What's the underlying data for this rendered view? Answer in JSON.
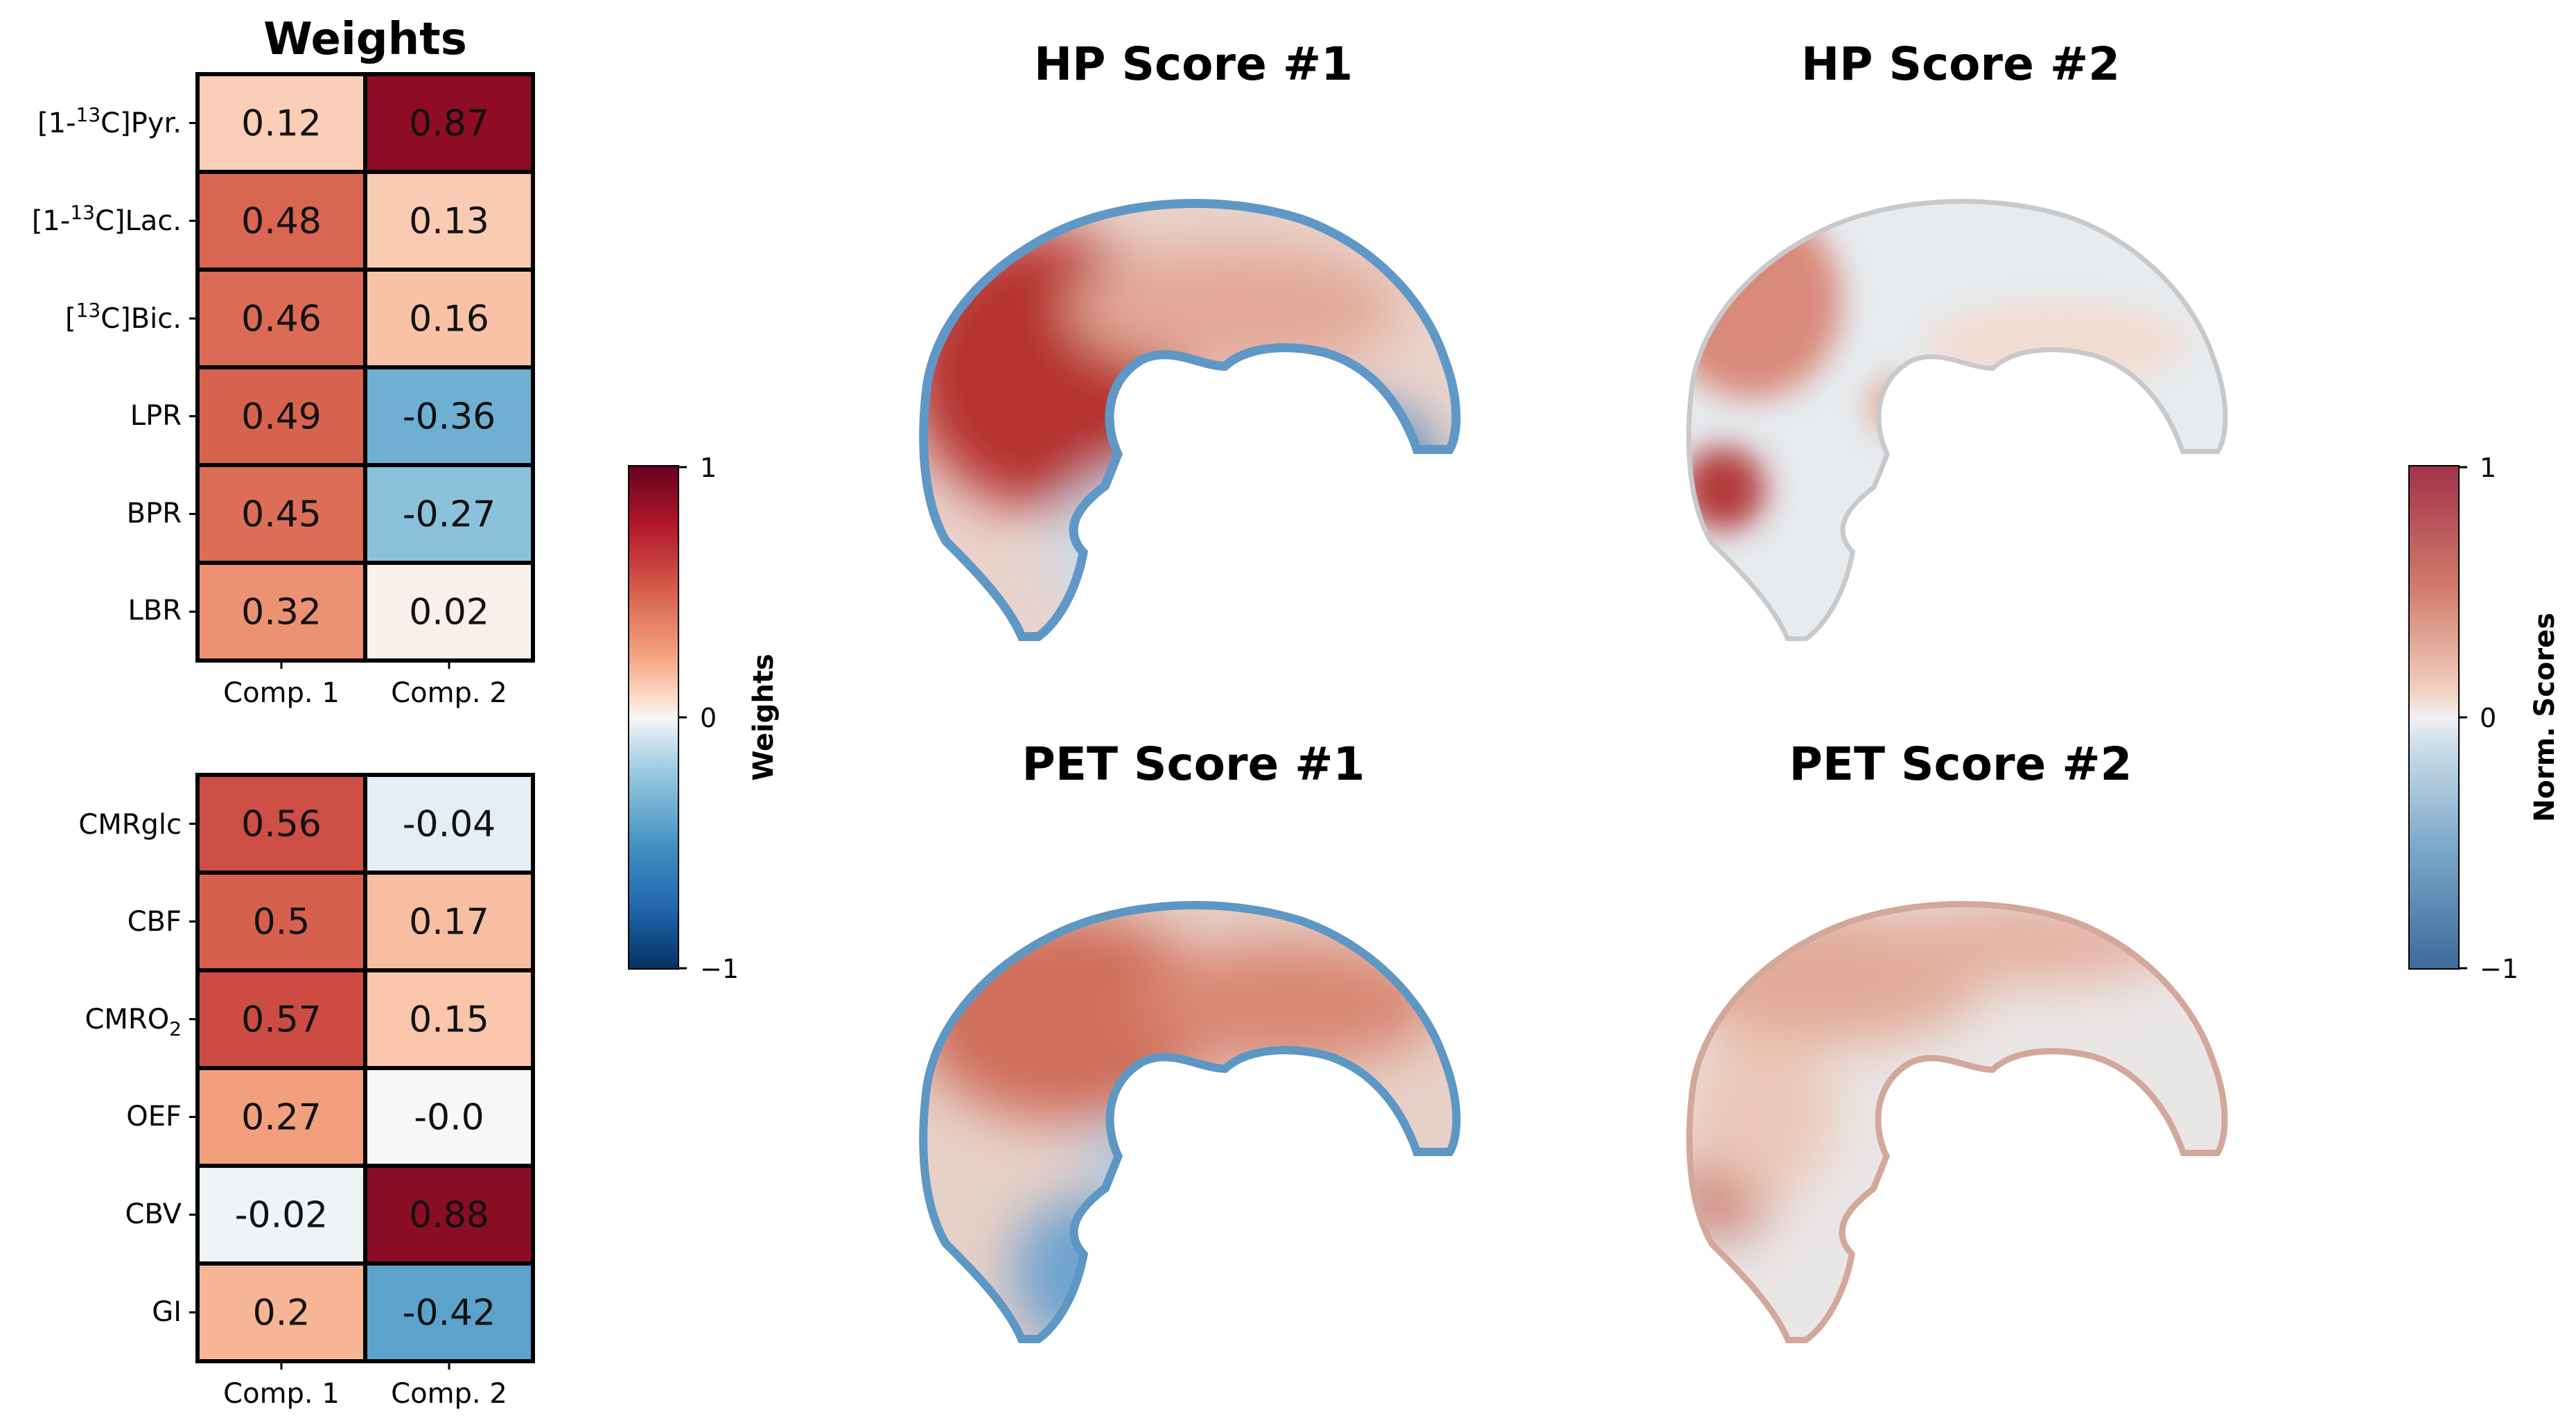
{
  "colors": {
    "strong_red": "#8e1023",
    "red": "#c84a3e",
    "light_red": "#f4b59a",
    "white": "#f7f7f7",
    "light_blue": "#a6cde2",
    "blue": "#3f86bd",
    "dark_blue": "#0b3e77",
    "brain_base": "#e6ebee"
  },
  "chart_data": [
    {
      "type": "heatmap",
      "title": "Weights",
      "rows": [
        "[1-13C]Pyr.",
        "[1-13C]Lac.",
        "[13C]Bic.",
        "LPR",
        "BPR",
        "LBR"
      ],
      "columns": [
        "Comp. 1",
        "Comp. 2"
      ],
      "values": [
        [
          0.12,
          0.87
        ],
        [
          0.48,
          0.13
        ],
        [
          0.46,
          0.16
        ],
        [
          0.49,
          -0.36
        ],
        [
          0.45,
          -0.27
        ],
        [
          0.32,
          0.02
        ]
      ],
      "value_labels": [
        [
          "0.12",
          "0.87"
        ],
        [
          "0.48",
          "0.13"
        ],
        [
          "0.46",
          "0.16"
        ],
        [
          "0.49",
          "-0.36"
        ],
        [
          "0.45",
          "-0.27"
        ],
        [
          "0.32",
          "0.02"
        ]
      ],
      "vmin": -1,
      "vmax": 1
    },
    {
      "type": "heatmap",
      "title": "",
      "rows": [
        "CMRglc",
        "CBF",
        "CMRO2",
        "OEF",
        "CBV",
        "GI"
      ],
      "columns": [
        "Comp. 1",
        "Comp. 2"
      ],
      "values": [
        [
          0.56,
          -0.04
        ],
        [
          0.5,
          0.17
        ],
        [
          0.57,
          0.15
        ],
        [
          0.27,
          -0.0
        ],
        [
          -0.02,
          0.88
        ],
        [
          0.2,
          -0.42
        ]
      ],
      "value_labels": [
        [
          "0.56",
          "-0.04"
        ],
        [
          "0.5",
          "0.17"
        ],
        [
          "0.57",
          "0.15"
        ],
        [
          "0.27",
          "-0.0"
        ],
        [
          "-0.02",
          "0.88"
        ],
        [
          "0.2",
          "-0.42"
        ]
      ],
      "vmin": -1,
      "vmax": 1
    },
    {
      "type": "heatmap",
      "title": "HP Score #1",
      "pattern": "anterior-red, inferior-blue"
    },
    {
      "type": "heatmap",
      "title": "HP Score #2",
      "pattern": "frontal-red, mostly neutral"
    },
    {
      "type": "heatmap",
      "title": "PET Score #1",
      "pattern": "cortex-red, inferior-blue"
    },
    {
      "type": "heatmap",
      "title": "PET Score #2",
      "pattern": "cortex-light-red, mostly neutral"
    }
  ],
  "colorbars": {
    "weights": {
      "label": "Weights",
      "ticks": [
        "1",
        "0",
        "−1"
      ]
    },
    "scores": {
      "label": "Norm. Scores",
      "ticks": [
        "1",
        "0",
        "−1"
      ]
    }
  }
}
